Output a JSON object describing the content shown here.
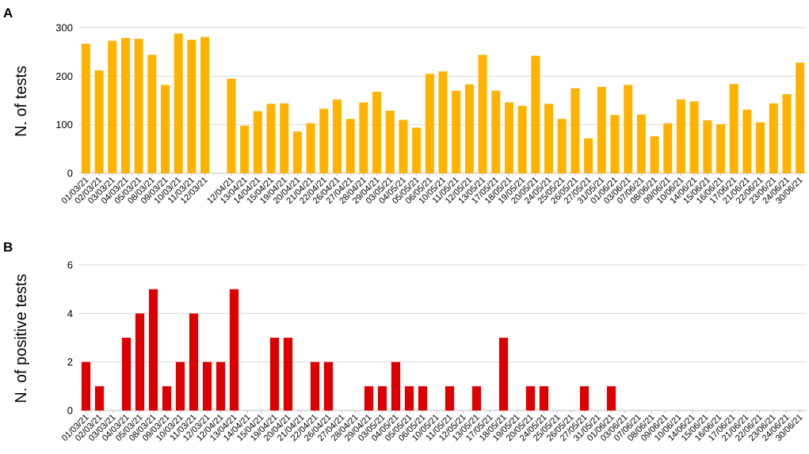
{
  "chart_data": [
    {
      "type": "bar",
      "panel_label": "A",
      "ylabel": "N. of tests",
      "ylim": [
        0,
        300
      ],
      "yticks": [
        0,
        100,
        200,
        300
      ],
      "grid": true,
      "color": "#FFB300",
      "categories": [
        "01/03/21",
        "02/03/21",
        "03/03/21",
        "04/03/21",
        "05/03/21",
        "08/03/21",
        "09/03/21",
        "10/03/21",
        "11/03/21",
        "12/03/21",
        "",
        "12/04/21",
        "13/04/21",
        "14/04/21",
        "15/04/21",
        "19/04/21",
        "20/04/21",
        "21/04/21",
        "22/04/21",
        "26/04/21",
        "27/04/21",
        "28/04/21",
        "29/04/21",
        "03/05/21",
        "04/05/21",
        "05/05/21",
        "06/05/21",
        "10/05/21",
        "11/05/21",
        "12/05/21",
        "13/05/21",
        "17/05/21",
        "18/05/21",
        "19/05/21",
        "20/05/21",
        "24/05/21",
        "25/05/21",
        "26/05/21",
        "27/05/21",
        "31/05/21",
        "01/06/21",
        "03/06/21",
        "07/06/21",
        "08/06/21",
        "09/06/21",
        "10/06/21",
        "14/06/21",
        "15/06/21",
        "16/06/21",
        "17/06/21",
        "21/06/21",
        "22/06/21",
        "23/06/21",
        "24/06/21",
        "30/06/21"
      ],
      "values": [
        267,
        212,
        273,
        279,
        277,
        244,
        182,
        288,
        275,
        281,
        null,
        195,
        98,
        128,
        143,
        144,
        86,
        103,
        133,
        152,
        112,
        146,
        168,
        129,
        110,
        94,
        205,
        210,
        170,
        183,
        244,
        170,
        146,
        139,
        242,
        143,
        112,
        175,
        72,
        178,
        120,
        182,
        121,
        76,
        103,
        152,
        148,
        109,
        101,
        184,
        131,
        105,
        144,
        163,
        228
      ]
    },
    {
      "type": "bar",
      "panel_label": "B",
      "ylabel": "N. of positive tests",
      "ylim": [
        0,
        6
      ],
      "yticks": [
        0,
        2,
        4,
        6
      ],
      "grid": true,
      "color": "#DD0000",
      "categories": [
        "01/03/21",
        "02/03/21",
        "03/03/21",
        "04/03/21",
        "05/03/21",
        "08/03/21",
        "09/03/21",
        "10/03/21",
        "11/03/21",
        "12/03/21",
        "12/04/21",
        "13/04/21",
        "14/04/21",
        "15/04/21",
        "19/04/21",
        "20/04/21",
        "21/04/21",
        "22/04/21",
        "26/04/21",
        "27/04/21",
        "28/04/21",
        "29/04/21",
        "03/05/21",
        "04/05/21",
        "05/05/21",
        "06/05/21",
        "10/05/21",
        "11/05/21",
        "12/05/21",
        "13/05/21",
        "17/05/21",
        "18/05/21",
        "19/05/21",
        "20/05/21",
        "24/05/21",
        "25/05/21",
        "26/05/21",
        "27/05/21",
        "31/05/21",
        "01/06/21",
        "03/06/21",
        "07/06/21",
        "08/06/21",
        "09/06/21",
        "10/06/21",
        "14/06/21",
        "15/06/21",
        "16/06/21",
        "17/06/21",
        "21/06/21",
        "22/06/21",
        "23/06/21",
        "24/06/21",
        "30/06/21"
      ],
      "values": [
        2,
        1,
        0,
        3,
        4,
        5,
        1,
        2,
        4,
        2,
        2,
        5,
        0,
        0,
        3,
        3,
        0,
        2,
        2,
        0,
        0,
        1,
        1,
        2,
        1,
        1,
        0,
        1,
        0,
        1,
        0,
        3,
        0,
        1,
        1,
        0,
        0,
        1,
        0,
        1,
        0,
        0,
        0,
        0,
        0,
        0,
        0,
        0,
        0,
        0,
        0,
        0,
        0,
        0
      ]
    }
  ]
}
